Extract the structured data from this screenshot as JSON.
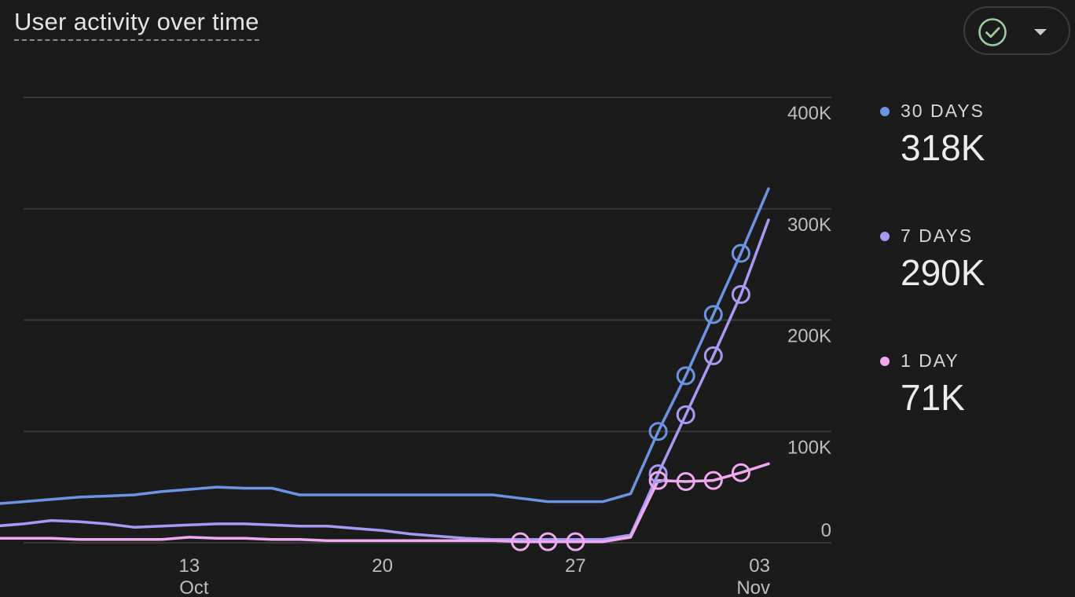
{
  "title": "User activity over time",
  "compare_button": {
    "icon": "check-circle-icon",
    "dropdown_icon": "caret-down-icon"
  },
  "legend": [
    {
      "label": "30 DAYS",
      "value": "318K",
      "color": "#6d93e3"
    },
    {
      "label": "7 DAYS",
      "value": "290K",
      "color": "#a79af3"
    },
    {
      "label": "1 DAY",
      "value": "71K",
      "color": "#efa9f1"
    }
  ],
  "chart_data": {
    "type": "line",
    "y_ticks": [
      "400K",
      "300K",
      "200K",
      "100K",
      "0"
    ],
    "y_tick_values": [
      400000,
      300000,
      200000,
      100000,
      0
    ],
    "ylim": [
      0,
      400000
    ],
    "x_tick_labels": [
      {
        "day": "13",
        "month": "Oct",
        "x": "2023-10-13"
      },
      {
        "day": "20",
        "month": "",
        "x": "2023-10-20"
      },
      {
        "day": "27",
        "month": "",
        "x": "2023-10-27"
      },
      {
        "day": "03",
        "month": "Nov",
        "x": "2023-11-03"
      }
    ],
    "x": [
      "2023-10-06",
      "2023-10-07",
      "2023-10-08",
      "2023-10-09",
      "2023-10-10",
      "2023-10-11",
      "2023-10-12",
      "2023-10-13",
      "2023-10-14",
      "2023-10-15",
      "2023-10-16",
      "2023-10-17",
      "2023-10-18",
      "2023-10-19",
      "2023-10-20",
      "2023-10-21",
      "2023-10-22",
      "2023-10-23",
      "2023-10-24",
      "2023-10-25",
      "2023-10-26",
      "2023-10-27",
      "2023-10-28",
      "2023-10-29",
      "2023-10-30",
      "2023-10-31",
      "2023-11-01",
      "2023-11-02",
      "2023-11-03"
    ],
    "series": [
      {
        "name": "30 DAYS",
        "color": "#6d93e3",
        "values": [
          35000,
          37000,
          39000,
          41000,
          42000,
          43000,
          46000,
          48000,
          50000,
          49000,
          49000,
          43000,
          43000,
          43000,
          43000,
          43000,
          43000,
          43000,
          43000,
          40000,
          37000,
          37000,
          37000,
          44000,
          100000,
          150000,
          205000,
          260000,
          318000
        ],
        "marked_points": [
          "2023-10-30",
          "2023-10-31",
          "2023-11-01",
          "2023-11-02"
        ]
      },
      {
        "name": "7 DAYS",
        "color": "#a79af3",
        "values": [
          15000,
          17000,
          20000,
          19000,
          17000,
          14000,
          15000,
          16000,
          17000,
          17000,
          16000,
          15000,
          15000,
          13000,
          11000,
          8000,
          6000,
          4000,
          3000,
          3000,
          3000,
          3000,
          3000,
          7000,
          62000,
          115000,
          168000,
          223000,
          290000
        ],
        "marked_points": [
          "2023-10-30",
          "2023-10-31",
          "2023-11-01",
          "2023-11-02"
        ]
      },
      {
        "name": "1 DAY",
        "color": "#efa9f1",
        "values": [
          4000,
          4000,
          4000,
          3000,
          3000,
          3000,
          3000,
          5000,
          4000,
          4000,
          3000,
          3000,
          2000,
          2000,
          2000,
          2000,
          2000,
          2000,
          2000,
          1000,
          1000,
          1000,
          1000,
          5000,
          56000,
          55000,
          56000,
          63000,
          71000
        ],
        "marked_points": [
          "2023-10-25",
          "2023-10-26",
          "2023-10-27",
          "2023-10-30",
          "2023-10-31",
          "2023-11-01",
          "2023-11-02"
        ]
      }
    ]
  }
}
